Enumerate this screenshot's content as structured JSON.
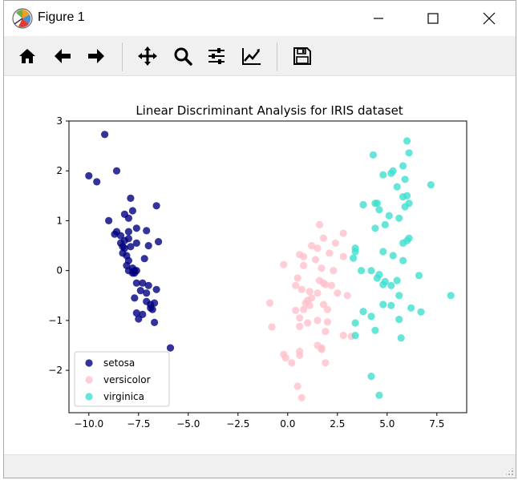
{
  "window": {
    "title": "Figure 1",
    "icons": {
      "app": "matplotlib-icon",
      "minimize": "minimize-icon",
      "maximize": "maximize-icon",
      "close": "close-icon"
    }
  },
  "toolbar": {
    "buttons": [
      {
        "name": "home",
        "icon": "home-icon"
      },
      {
        "name": "back",
        "icon": "arrow-left-icon"
      },
      {
        "name": "forward",
        "icon": "arrow-right-icon"
      },
      {
        "name": "pan",
        "icon": "move-icon"
      },
      {
        "name": "zoom",
        "icon": "magnifier-icon"
      },
      {
        "name": "configure-subplots",
        "icon": "sliders-icon"
      },
      {
        "name": "edit-axes",
        "icon": "line-chart-icon"
      },
      {
        "name": "save",
        "icon": "floppy-disk-icon"
      }
    ]
  },
  "chart_data": {
    "type": "scatter",
    "title": "Linear Discriminant Analysis for  IRIS dataset",
    "xlabel": "",
    "ylabel": "",
    "xlim": [
      -11.0,
      9.0
    ],
    "ylim": [
      -2.85,
      3.0
    ],
    "xticks": [
      "−10.0",
      "−7.5",
      "−5.0",
      "−2.5",
      "0.0",
      "2.5",
      "5.0",
      "7.5"
    ],
    "xtick_values": [
      -10.0,
      -7.5,
      -5.0,
      -2.5,
      0.0,
      2.5,
      5.0,
      7.5
    ],
    "yticks": [
      "−2",
      "−1",
      "0",
      "1",
      "2",
      "3"
    ],
    "ytick_values": [
      -2,
      -1,
      0,
      1,
      2,
      3
    ],
    "grid": false,
    "legend_position": "lower-left",
    "series": [
      {
        "name": "setosa",
        "color": "#000080",
        "points": [
          [
            -9.2,
            2.73
          ],
          [
            -8.6,
            2.0
          ],
          [
            -10.0,
            1.9
          ],
          [
            -9.6,
            1.78
          ],
          [
            -9.0,
            1.0
          ],
          [
            -8.6,
            0.78
          ],
          [
            -8.7,
            0.73
          ],
          [
            -8.4,
            0.7
          ],
          [
            -7.9,
            1.45
          ],
          [
            -7.8,
            1.2
          ],
          [
            -8.2,
            1.13
          ],
          [
            -8.0,
            1.05
          ],
          [
            -6.6,
            1.3
          ],
          [
            -7.6,
            0.85
          ],
          [
            -7.1,
            0.8
          ],
          [
            -8.4,
            0.55
          ],
          [
            -8.0,
            0.78
          ],
          [
            -8.0,
            0.64
          ],
          [
            -8.2,
            0.6
          ],
          [
            -8.3,
            0.48
          ],
          [
            -7.9,
            0.48
          ],
          [
            -8.2,
            0.45
          ],
          [
            -7.6,
            0.55
          ],
          [
            -7.0,
            0.5
          ],
          [
            -6.5,
            0.58
          ],
          [
            -8.1,
            0.3
          ],
          [
            -8.0,
            0.2
          ],
          [
            -8.1,
            0.1
          ],
          [
            -7.2,
            0.24
          ],
          [
            -8.3,
            0.35
          ],
          [
            -7.8,
            0.05
          ],
          [
            -7.7,
            0.0
          ],
          [
            -7.8,
            -0.05
          ],
          [
            -7.6,
            0.0
          ],
          [
            -8.0,
            0.0
          ],
          [
            -7.7,
            -0.05
          ],
          [
            -7.6,
            -0.25
          ],
          [
            -7.3,
            -0.25
          ],
          [
            -7.0,
            -0.3
          ],
          [
            -7.4,
            -0.4
          ],
          [
            -7.1,
            -0.45
          ],
          [
            -6.6,
            -0.38
          ],
          [
            -7.7,
            -0.55
          ],
          [
            -7.1,
            -0.62
          ],
          [
            -6.9,
            -0.68
          ],
          [
            -6.7,
            -0.65
          ],
          [
            -6.9,
            -0.75
          ],
          [
            -6.8,
            -0.78
          ],
          [
            -7.6,
            -0.85
          ],
          [
            -7.3,
            -0.88
          ],
          [
            -7.5,
            -0.97
          ],
          [
            -6.7,
            -1.04
          ],
          [
            -5.9,
            -1.55
          ]
        ]
      },
      {
        "name": "versicolor",
        "color": "#ffc0cb",
        "points": [
          [
            1.6,
            0.92
          ],
          [
            2.8,
            0.75
          ],
          [
            1.8,
            0.65
          ],
          [
            1.2,
            0.5
          ],
          [
            2.4,
            0.55
          ],
          [
            1.5,
            0.45
          ],
          [
            0.6,
            0.32
          ],
          [
            0.8,
            0.28
          ],
          [
            1.4,
            0.22
          ],
          [
            2.1,
            0.35
          ],
          [
            2.8,
            0.28
          ],
          [
            -0.2,
            0.12
          ],
          [
            0.8,
            0.1
          ],
          [
            1.7,
            0.05
          ],
          [
            2.3,
            0.0
          ],
          [
            0.5,
            -0.15
          ],
          [
            1.6,
            -0.2
          ],
          [
            1.8,
            -0.25
          ],
          [
            2.2,
            -0.3
          ],
          [
            1.9,
            -0.28
          ],
          [
            0.4,
            -0.3
          ],
          [
            0.7,
            -0.38
          ],
          [
            1.1,
            -0.42
          ],
          [
            1.5,
            -0.45
          ],
          [
            1.2,
            -0.55
          ],
          [
            2.5,
            -0.45
          ],
          [
            3.0,
            -0.5
          ],
          [
            1.0,
            -0.6
          ],
          [
            0.9,
            -0.65
          ],
          [
            1.1,
            -0.7
          ],
          [
            1.8,
            -0.68
          ],
          [
            -0.9,
            -0.65
          ],
          [
            0.4,
            -0.8
          ],
          [
            0.8,
            -0.78
          ],
          [
            2.0,
            -0.78
          ],
          [
            0.6,
            -0.95
          ],
          [
            1.5,
            -1.0
          ],
          [
            2.0,
            -1.03
          ],
          [
            -0.8,
            -1.13
          ],
          [
            0.6,
            -1.12
          ],
          [
            1.0,
            -1.05
          ],
          [
            1.9,
            -1.22
          ],
          [
            2.8,
            -1.3
          ],
          [
            3.2,
            -1.32
          ],
          [
            1.5,
            -1.5
          ],
          [
            1.7,
            -1.55
          ],
          [
            -0.2,
            -1.68
          ],
          [
            0.6,
            -1.62
          ],
          [
            -0.1,
            -1.75
          ],
          [
            0.2,
            -1.85
          ],
          [
            0.6,
            -1.7
          ],
          [
            1.7,
            -1.58
          ],
          [
            1.9,
            -1.85
          ],
          [
            0.5,
            -2.32
          ],
          [
            0.7,
            -2.55
          ]
        ]
      },
      {
        "name": "virginica",
        "color": "#40e0d0",
        "points": [
          [
            6.0,
            2.6
          ],
          [
            4.3,
            2.32
          ],
          [
            6.1,
            2.36
          ],
          [
            5.8,
            2.1
          ],
          [
            5.3,
            2.0
          ],
          [
            4.8,
            1.92
          ],
          [
            5.2,
            1.95
          ],
          [
            5.9,
            1.83
          ],
          [
            7.2,
            1.72
          ],
          [
            5.5,
            1.68
          ],
          [
            4.4,
            1.35
          ],
          [
            5.8,
            1.48
          ],
          [
            6.0,
            1.5
          ],
          [
            5.9,
            1.28
          ],
          [
            6.1,
            1.35
          ],
          [
            4.5,
            1.35
          ],
          [
            3.8,
            1.32
          ],
          [
            4.6,
            1.22
          ],
          [
            5.1,
            1.1
          ],
          [
            5.6,
            1.05
          ],
          [
            4.9,
            0.92
          ],
          [
            6.1,
            0.65
          ],
          [
            5.8,
            0.55
          ],
          [
            6.0,
            0.6
          ],
          [
            4.4,
            0.85
          ],
          [
            3.4,
            0.45
          ],
          [
            3.4,
            0.38
          ],
          [
            4.8,
            0.38
          ],
          [
            5.3,
            0.3
          ],
          [
            5.8,
            0.2
          ],
          [
            3.3,
            0.25
          ],
          [
            3.7,
            0.0
          ],
          [
            4.2,
            0.0
          ],
          [
            4.6,
            -0.08
          ],
          [
            4.5,
            -0.15
          ],
          [
            4.9,
            -0.22
          ],
          [
            4.8,
            -0.28
          ],
          [
            5.2,
            -0.3
          ],
          [
            6.6,
            -0.1
          ],
          [
            5.5,
            -0.2
          ],
          [
            8.2,
            -0.5
          ],
          [
            5.6,
            -0.5
          ],
          [
            5.2,
            -0.7
          ],
          [
            4.8,
            -0.68
          ],
          [
            6.2,
            -0.75
          ],
          [
            6.7,
            -0.83
          ],
          [
            3.8,
            -0.82
          ],
          [
            4.2,
            -0.92
          ],
          [
            3.4,
            -1.05
          ],
          [
            5.6,
            -0.98
          ],
          [
            4.4,
            -1.2
          ],
          [
            3.4,
            -1.3
          ],
          [
            5.7,
            -1.35
          ],
          [
            4.2,
            -2.12
          ],
          [
            4.6,
            -2.5
          ]
        ]
      }
    ]
  }
}
